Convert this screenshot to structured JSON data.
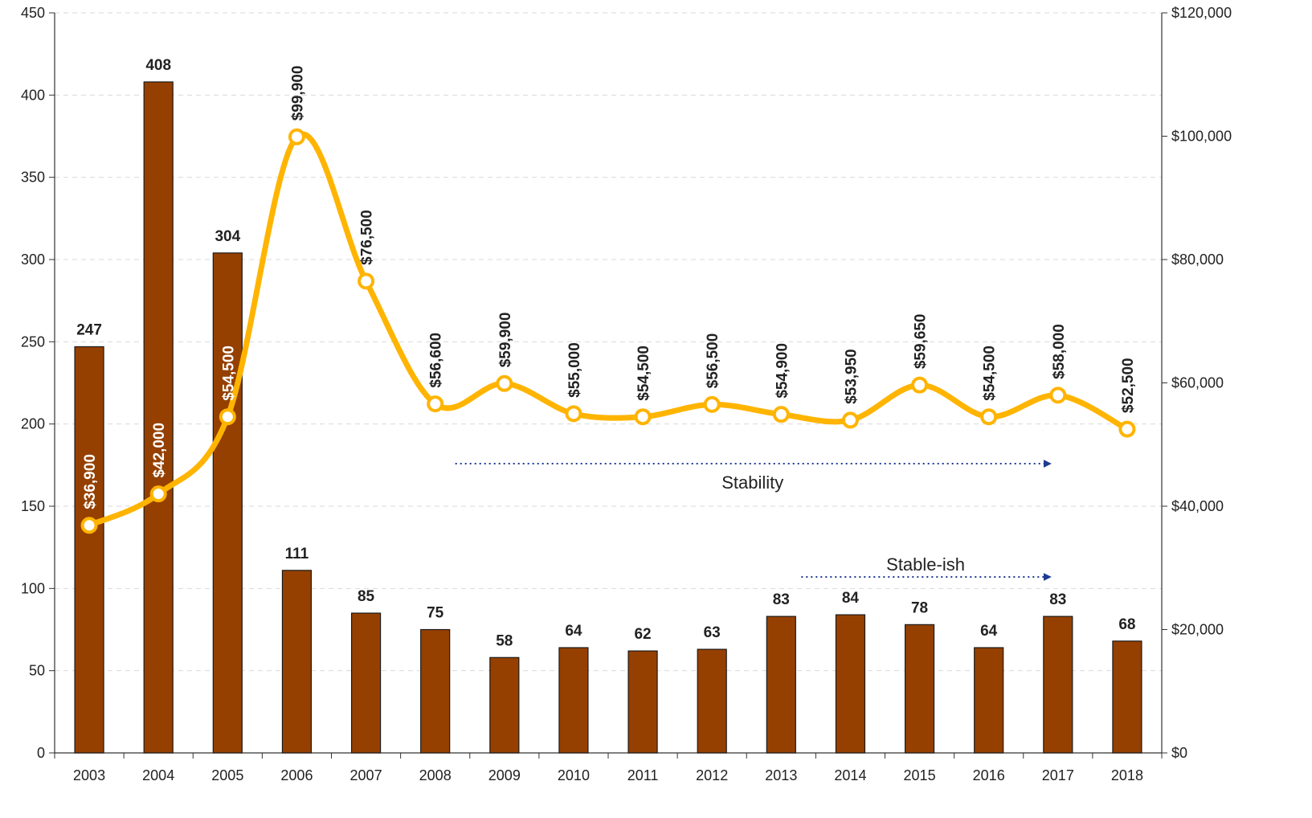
{
  "chart_data": {
    "type": "bar",
    "categories": [
      "2003",
      "2004",
      "2005",
      "2006",
      "2007",
      "2008",
      "2009",
      "2010",
      "2011",
      "2012",
      "2013",
      "2014",
      "2015",
      "2016",
      "2017",
      "2018"
    ],
    "series": [
      {
        "type": "bar",
        "axis": "left",
        "values": [
          247,
          408,
          304,
          111,
          85,
          75,
          58,
          64,
          62,
          63,
          83,
          84,
          78,
          64,
          83,
          68
        ],
        "labels": [
          "247",
          "408",
          "304",
          "111",
          "85",
          "75",
          "58",
          "64",
          "62",
          "63",
          "83",
          "84",
          "78",
          "64",
          "83",
          "68"
        ],
        "color": "#954000"
      },
      {
        "type": "line",
        "axis": "right",
        "smooth": true,
        "values": [
          36900,
          42000,
          54500,
          99900,
          76500,
          56600,
          59900,
          55000,
          54500,
          56500,
          54900,
          53950,
          59650,
          54500,
          58000,
          52500
        ],
        "labels": [
          "$36,900",
          "$42,000",
          "$54,500",
          "$99,900",
          "$76,500",
          "$56,600",
          "$59,900",
          "$55,000",
          "$54,500",
          "$56,500",
          "$54,900",
          "$53,950",
          "$59,650",
          "$54,500",
          "$58,000",
          "$52,500"
        ],
        "color": "#FFB400"
      }
    ],
    "y_left": {
      "min": 0,
      "max": 450,
      "ticks": [
        0,
        50,
        100,
        150,
        200,
        250,
        300,
        350,
        400,
        450
      ],
      "tick_labels": [
        "0",
        "50",
        "100",
        "150",
        "200",
        "250",
        "300",
        "350",
        "400",
        "450"
      ]
    },
    "y_right": {
      "min": 0,
      "max": 120000,
      "ticks": [
        0,
        20000,
        40000,
        60000,
        80000,
        100000,
        120000
      ],
      "tick_labels": [
        "$0",
        "$20,000",
        "$40,000",
        "$60,000",
        "$80,000",
        "$100,000",
        "$120,000"
      ]
    },
    "gridlines": "horizontal-dashed",
    "legend": "none",
    "annotations": [
      {
        "text": "Stability",
        "from": "2008",
        "to": "2017",
        "series": "line",
        "arrow_value": 46900
      },
      {
        "text": "Stable-ish",
        "from": "2013",
        "to": "2017",
        "series": "bar",
        "arrow_value": 107
      }
    ],
    "colors": {
      "axis": "#333333",
      "grid": "#d9d9d9",
      "arrow": "#1f3a93",
      "text": "#222222"
    }
  }
}
